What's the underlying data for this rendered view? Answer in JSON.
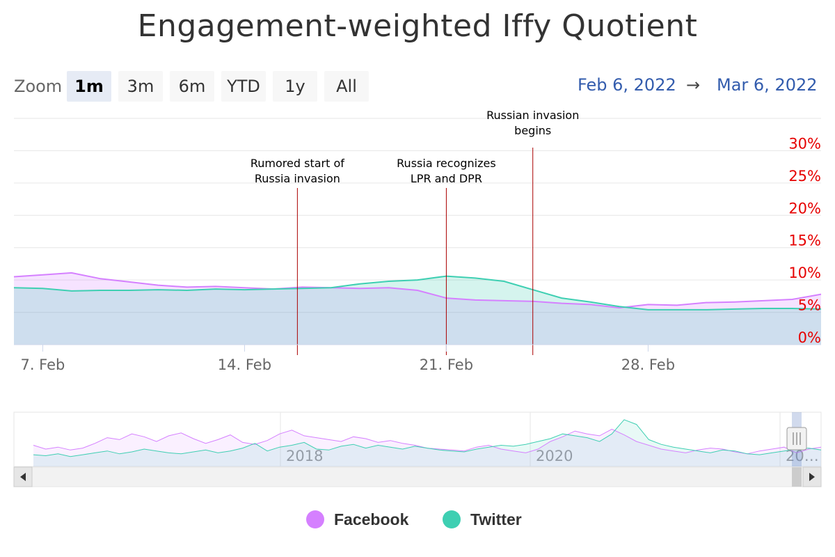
{
  "title": "Engagement-weighted Iffy Quotient",
  "range_selector": {
    "label": "Zoom",
    "buttons": [
      "1m",
      "3m",
      "6m",
      "YTD",
      "1y",
      "All"
    ],
    "selected": "1m",
    "from": "Feb 6, 2022",
    "arrow": "→",
    "to": "Mar 6, 2022"
  },
  "colors": {
    "facebook": "#d580ff",
    "twitter": "#3ecfb2",
    "yaxis_labels": "#e60000",
    "annotation_line": "#aa0000",
    "range_text": "#335cad"
  },
  "chart_data": {
    "type": "area",
    "title": "Engagement-weighted Iffy Quotient",
    "x_start": "2022-02-06",
    "x_end": "2022-03-06",
    "xticks": [
      "7. Feb",
      "14. Feb",
      "21. Feb",
      "28. Feb"
    ],
    "ylim": [
      0,
      35
    ],
    "yticks": [
      "0%",
      "5%",
      "10%",
      "15%",
      "20%",
      "25%",
      "30%"
    ],
    "grid": true,
    "legend_position": "bottom",
    "series": [
      {
        "name": "Facebook",
        "x": [
          "2022-02-06",
          "2022-02-07",
          "2022-02-08",
          "2022-02-09",
          "2022-02-10",
          "2022-02-11",
          "2022-02-12",
          "2022-02-13",
          "2022-02-14",
          "2022-02-15",
          "2022-02-16",
          "2022-02-17",
          "2022-02-18",
          "2022-02-19",
          "2022-02-20",
          "2022-02-21",
          "2022-02-22",
          "2022-02-23",
          "2022-02-24",
          "2022-02-25",
          "2022-02-26",
          "2022-02-27",
          "2022-02-28",
          "2022-03-01",
          "2022-03-02",
          "2022-03-03",
          "2022-03-04",
          "2022-03-05",
          "2022-03-06"
        ],
        "values": [
          10.5,
          10.8,
          11.1,
          10.2,
          9.7,
          9.2,
          8.9,
          9.0,
          8.8,
          8.6,
          8.9,
          8.8,
          8.7,
          8.8,
          8.4,
          7.2,
          6.9,
          6.8,
          6.7,
          6.4,
          6.2,
          5.7,
          6.2,
          6.1,
          6.5,
          6.6,
          6.8,
          7.0,
          7.8
        ]
      },
      {
        "name": "Twitter",
        "x": [
          "2022-02-06",
          "2022-02-07",
          "2022-02-08",
          "2022-02-09",
          "2022-02-10",
          "2022-02-11",
          "2022-02-12",
          "2022-02-13",
          "2022-02-14",
          "2022-02-15",
          "2022-02-16",
          "2022-02-17",
          "2022-02-18",
          "2022-02-19",
          "2022-02-20",
          "2022-02-21",
          "2022-02-22",
          "2022-02-23",
          "2022-02-24",
          "2022-02-25",
          "2022-02-26",
          "2022-02-27",
          "2022-02-28",
          "2022-03-01",
          "2022-03-02",
          "2022-03-03",
          "2022-03-04",
          "2022-03-05",
          "2022-03-06"
        ],
        "values": [
          8.8,
          8.7,
          8.3,
          8.4,
          8.4,
          8.5,
          8.4,
          8.6,
          8.5,
          8.6,
          8.7,
          8.8,
          9.4,
          9.8,
          10.0,
          10.6,
          10.3,
          9.8,
          8.5,
          7.2,
          6.6,
          5.9,
          5.4,
          5.4,
          5.4,
          5.5,
          5.6,
          5.6,
          5.5
        ]
      }
    ],
    "annotations": [
      {
        "x": "2022-02-15 20:00",
        "label_lines": [
          "Rumored start of",
          "Russia invasion"
        ]
      },
      {
        "x": "2022-02-21",
        "label_lines": [
          "Russia recognizes",
          "LPR and DPR"
        ]
      },
      {
        "x": "2022-02-24",
        "label_lines": [
          "Russian invasion",
          "begins"
        ]
      }
    ],
    "navigator": {
      "xticks": [
        "2018",
        "2020",
        "20…"
      ],
      "series": [
        {
          "name": "Facebook",
          "values": [
            18,
            14,
            16,
            13,
            15,
            20,
            26,
            24,
            30,
            27,
            22,
            28,
            31,
            25,
            20,
            24,
            29,
            21,
            19,
            23,
            30,
            34,
            28,
            26,
            24,
            22,
            27,
            25,
            21,
            23,
            20,
            18,
            15,
            14,
            13,
            12,
            16,
            18,
            14,
            12,
            10,
            14,
            22,
            27,
            33,
            30,
            28,
            35,
            29,
            22,
            18,
            14,
            12,
            10,
            13,
            15,
            14,
            11,
            9,
            12,
            14,
            16,
            10,
            14,
            16
          ]
        },
        {
          "name": "Twitter",
          "values": [
            8,
            7,
            9,
            6,
            8,
            10,
            12,
            9,
            11,
            14,
            12,
            10,
            9,
            11,
            13,
            10,
            12,
            15,
            20,
            12,
            16,
            18,
            21,
            14,
            13,
            17,
            19,
            15,
            18,
            16,
            14,
            17,
            15,
            13,
            12,
            11,
            14,
            16,
            18,
            17,
            19,
            22,
            25,
            30,
            28,
            26,
            22,
            30,
            45,
            40,
            24,
            19,
            16,
            14,
            12,
            10,
            13,
            12,
            9,
            8,
            10,
            12,
            14,
            15,
            13
          ]
        }
      ]
    }
  },
  "legend": {
    "facebook": "Facebook",
    "twitter": "Twitter"
  },
  "navigator_controls": {
    "left_arrow": "◀",
    "right_arrow": "▶"
  }
}
